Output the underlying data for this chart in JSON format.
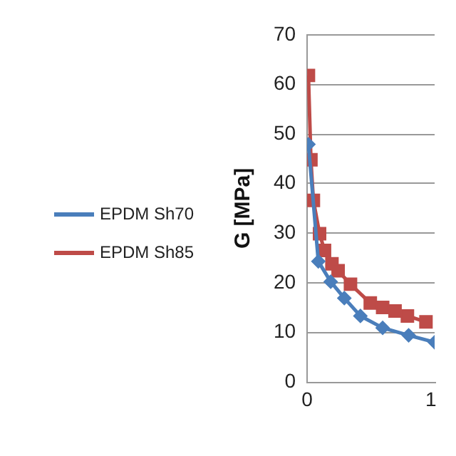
{
  "chart_data": {
    "type": "line",
    "ylabel": "G [MPa]",
    "xlim": [
      0,
      1.03
    ],
    "xticks": [
      0,
      1
    ],
    "ylim": [
      0,
      70
    ],
    "yticks": [
      0,
      10,
      20,
      30,
      40,
      50,
      60,
      70
    ],
    "grid": "y",
    "legend": "left",
    "series": [
      {
        "name": "EPDM Sh70",
        "color": "#4a7ebb",
        "marker": "diamond",
        "x": [
          0.01,
          0.09,
          0.19,
          0.3,
          0.43,
          0.61,
          0.82,
          1.03
        ],
        "values": [
          47.9,
          24.3,
          20.2,
          16.9,
          13.3,
          10.9,
          9.4,
          8.0
        ]
      },
      {
        "name": "EPDM Sh85",
        "color": "#be4b48",
        "marker": "square",
        "x": [
          0.01,
          0.03,
          0.05,
          0.1,
          0.14,
          0.2,
          0.25,
          0.35,
          0.51,
          0.61,
          0.71,
          0.81,
          0.96
        ],
        "values": [
          61.8,
          44.8,
          36.6,
          29.9,
          26.5,
          23.8,
          22.4,
          19.7,
          15.9,
          15.0,
          14.3,
          13.3,
          12.1
        ]
      }
    ]
  }
}
